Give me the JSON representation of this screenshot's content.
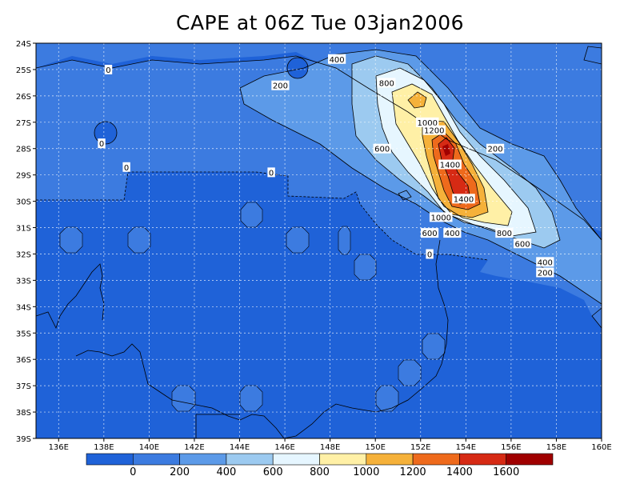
{
  "title": "CAPE at 06Z Tue 03jan2006",
  "chart_data": {
    "type": "contour",
    "variable": "CAPE",
    "x_ticks": [
      "136E",
      "138E",
      "140E",
      "142E",
      "144E",
      "146E",
      "148E",
      "150E",
      "152E",
      "154E",
      "156E",
      "158E",
      "160E"
    ],
    "y_ticks": [
      "24S",
      "25S",
      "26S",
      "27S",
      "28S",
      "29S",
      "30S",
      "31S",
      "32S",
      "33S",
      "34S",
      "35S",
      "36S",
      "37S",
      "38S",
      "39S"
    ],
    "xlim": [
      135,
      160
    ],
    "ylim": [
      -39,
      -24
    ],
    "grid": true,
    "contour_labels": [
      {
        "text": "400",
        "lon": 148.3,
        "lat": -24.6
      },
      {
        "text": "800",
        "lon": 150.5,
        "lat": -25.5
      },
      {
        "text": "200",
        "lon": 145.8,
        "lat": -25.6
      },
      {
        "text": "0",
        "lon": 138.2,
        "lat": -25.0
      },
      {
        "text": "0",
        "lon": 137.9,
        "lat": -27.8
      },
      {
        "text": "0",
        "lon": 139.0,
        "lat": -28.7
      },
      {
        "text": "0",
        "lon": 145.4,
        "lat": -28.9
      },
      {
        "text": "1000",
        "lon": 152.3,
        "lat": -27.0
      },
      {
        "text": "1200",
        "lon": 152.6,
        "lat": -27.3
      },
      {
        "text": "600",
        "lon": 150.3,
        "lat": -28.0
      },
      {
        "text": "200",
        "lon": 155.3,
        "lat": -28.0
      },
      {
        "text": "1400",
        "lon": 153.3,
        "lat": -28.6
      },
      {
        "text": "1400",
        "lon": 153.9,
        "lat": -29.9
      },
      {
        "text": "1000",
        "lon": 152.9,
        "lat": -30.6
      },
      {
        "text": "600",
        "lon": 152.4,
        "lat": -31.2
      },
      {
        "text": "400",
        "lon": 153.4,
        "lat": -31.2
      },
      {
        "text": "800",
        "lon": 155.7,
        "lat": -31.2
      },
      {
        "text": "600",
        "lon": 156.5,
        "lat": -31.6
      },
      {
        "text": "0",
        "lon": 152.4,
        "lat": -32.0
      },
      {
        "text": "400",
        "lon": 157.5,
        "lat": -32.3
      },
      {
        "text": "200",
        "lon": 157.5,
        "lat": -32.7
      }
    ],
    "colorbar": {
      "labels": [
        "0",
        "200",
        "400",
        "600",
        "800",
        "1000",
        "1200",
        "1400",
        "1600"
      ],
      "colors": [
        "#1f62d8",
        "#3c7be0",
        "#5c9ae8",
        "#9ccaf0",
        "#e6f6ff",
        "#fff0a6",
        "#f5b13a",
        "#ee6a1c",
        "#d62a14",
        "#a00000"
      ]
    }
  }
}
